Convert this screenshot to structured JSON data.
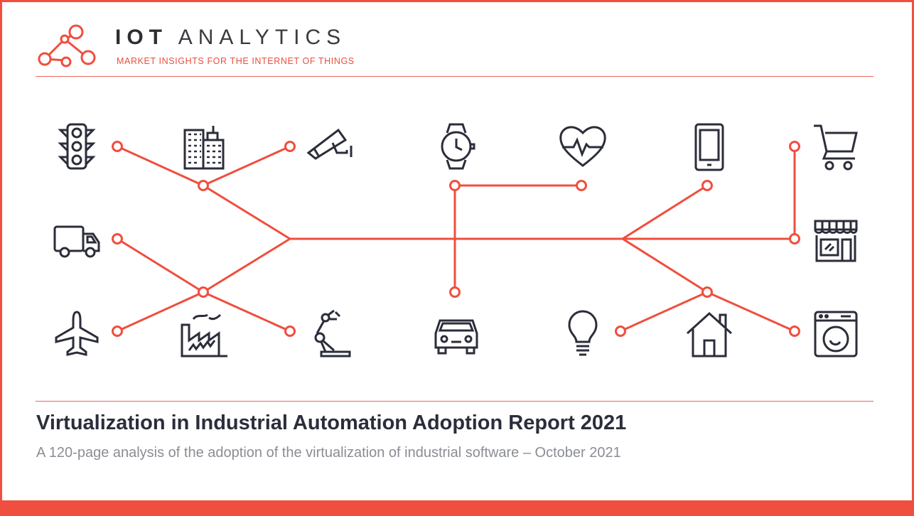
{
  "brand": {
    "name_bold": "IOT",
    "name_light": "ANALYTICS",
    "tagline": "MARKET INSIGHTS FOR THE INTERNET OF THINGS",
    "logo_icon": "network-nodes-logo"
  },
  "report": {
    "title": "Virtualization in Industrial Automation Adoption Report 2021",
    "subtitle": "A 120-page analysis of the adoption of the virtualization of industrial software – October 2021"
  },
  "illustration": {
    "icons": [
      "traffic-light-icon",
      "city-buildings-icon",
      "security-camera-icon",
      "smartwatch-icon",
      "heart-rate-icon",
      "smartphone-icon",
      "shopping-cart-icon",
      "delivery-truck-icon",
      "storefront-icon",
      "airplane-icon",
      "factory-icon",
      "robot-arm-icon",
      "car-icon",
      "light-bulb-icon",
      "house-icon",
      "washing-machine-icon"
    ]
  },
  "colors": {
    "accent": "#f04e3e",
    "icon_stroke": "#2b2d3a",
    "title_text": "#2b2d3a",
    "subtitle_text": "#8a8d94"
  }
}
